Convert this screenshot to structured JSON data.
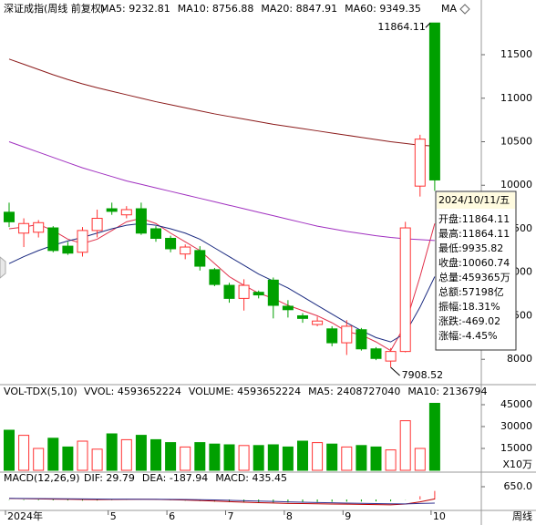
{
  "chart_data": [
    {
      "type": "candlestick",
      "title": "深证成指(周线 前复权)",
      "ma_button": "MA",
      "categories": [
        "2024年",
        null,
        null,
        null,
        null,
        null,
        null,
        "5",
        null,
        null,
        null,
        "6",
        null,
        null,
        null,
        "7",
        null,
        null,
        null,
        "8",
        null,
        null,
        null,
        "9",
        null,
        null,
        null,
        null,
        null,
        "10"
      ],
      "open": [
        9690,
        9450,
        9460,
        9510,
        9300,
        9230,
        9480,
        9730,
        9660,
        9730,
        9500,
        9390,
        9210,
        9250,
        9030,
        8850,
        8700,
        8770,
        8910,
        8610,
        8500,
        8400,
        8350,
        8190,
        8340,
        8120,
        7980,
        8090,
        9990,
        11864.11
      ],
      "high": [
        9800,
        9620,
        9600,
        9530,
        9350,
        9520,
        9720,
        9800,
        9760,
        9800,
        9530,
        9420,
        9320,
        9300,
        9050,
        8880,
        8920,
        8790,
        8940,
        8680,
        8530,
        8490,
        8380,
        8450,
        8360,
        8140,
        8130,
        9580,
        10580,
        11864.11
      ],
      "low": [
        9520,
        9290,
        9400,
        9230,
        9200,
        9180,
        9400,
        9660,
        9620,
        9430,
        9350,
        9230,
        9150,
        9020,
        8840,
        8650,
        8560,
        8700,
        8470,
        8480,
        8420,
        8380,
        8150,
        8050,
        8100,
        7990,
        7908.52,
        8080,
        9870,
        9935.82
      ],
      "close": [
        9580,
        9560,
        9570,
        9250,
        9220,
        9480,
        9620,
        9700,
        9720,
        9450,
        9390,
        9270,
        9290,
        9070,
        8860,
        8700,
        8850,
        8740,
        8620,
        8570,
        8470,
        8440,
        8190,
        8380,
        8120,
        8010,
        8090,
        9510,
        10530,
        10060.74
      ],
      "high_label": "11864.11",
      "low_label": "7908.52",
      "up_color": "#ff3232",
      "down_color": "#00a000",
      "series": [
        {
          "name": "MA5: 9232.81",
          "color": "#e0304a",
          "values": [
            9500,
            9520,
            9550,
            9480,
            9380,
            9330,
            9380,
            9480,
            9580,
            9620,
            9560,
            9450,
            9350,
            9250,
            9100,
            8950,
            8850,
            8760,
            8700,
            8620,
            8560,
            8500,
            8420,
            8320,
            8280,
            8200,
            8100,
            8400,
            8950,
            9560
          ]
        },
        {
          "name": "MA10: 8756.88",
          "color": "#1a2a80",
          "values": [
            9100,
            9180,
            9250,
            9310,
            9360,
            9400,
            9450,
            9500,
            9540,
            9560,
            9540,
            9500,
            9450,
            9380,
            9280,
            9180,
            9080,
            8980,
            8900,
            8820,
            8720,
            8620,
            8520,
            8420,
            8330,
            8250,
            8200,
            8300,
            8600,
            8950
          ]
        },
        {
          "name": "MA20: 8847.91",
          "color": "#a030c0",
          "values": [
            10500,
            10440,
            10380,
            10320,
            10260,
            10200,
            10150,
            10100,
            10050,
            10010,
            9970,
            9930,
            9890,
            9850,
            9810,
            9770,
            9730,
            9690,
            9650,
            9610,
            9570,
            9530,
            9500,
            9470,
            9445,
            9420,
            9400,
            9385,
            9375,
            9365
          ]
        },
        {
          "name": "MA60: 9349.35",
          "color": "#8b1a1a",
          "values": [
            11450,
            11390,
            11330,
            11270,
            11215,
            11165,
            11120,
            11080,
            11040,
            11000,
            10960,
            10925,
            10890,
            10855,
            10820,
            10790,
            10760,
            10730,
            10700,
            10675,
            10650,
            10625,
            10600,
            10575,
            10550,
            10525,
            10500,
            10480,
            10460,
            10450
          ]
        }
      ],
      "ylim": [
        7730,
        11919
      ],
      "yticks": [
        8000,
        8500,
        9000,
        9500,
        10000,
        10500,
        11000,
        11500
      ],
      "tooltip": {
        "title": "2024/10/11/五",
        "rows": [
          "开盘:11864.11",
          "最高:11864.11",
          "最低:9935.82",
          "收盘:10060.74",
          "总量:459365万",
          "总额:57198亿",
          "振幅:18.31%",
          "涨跌:-469.02",
          "涨幅:-4.45%"
        ]
      },
      "period_label": "周线"
    },
    {
      "type": "bar",
      "title": "VOL-TDX(5,10)",
      "legend": [
        "VVOL: 4593652224",
        "VOLUME: 4593652224",
        "MA5: 2408727040",
        "MA10: 2136794"
      ],
      "values": [
        27500,
        24000,
        15000,
        22000,
        16000,
        20000,
        14500,
        25000,
        21000,
        24000,
        21000,
        19000,
        16000,
        19000,
        18000,
        17500,
        17000,
        17000,
        17500,
        16000,
        20000,
        19000,
        18000,
        16000,
        17000,
        16000,
        14000,
        34000,
        15000,
        45937
      ],
      "ylim": [
        0,
        48750
      ],
      "yticks": [
        15000,
        30000,
        45000
      ],
      "unit": "X10万"
    },
    {
      "type": "macd",
      "title": "MACD(12,26,9)",
      "series": [
        {
          "name": "DIF: 29.79",
          "color": "#c00000",
          "values": [
            50,
            40,
            30,
            20,
            10,
            0,
            -5,
            0,
            5,
            10,
            5,
            -10,
            -30,
            -50,
            -80,
            -110,
            -140,
            -160,
            -180,
            -200,
            -210,
            -220,
            -230,
            -240,
            -250,
            -260,
            -270,
            -230,
            -120,
            29.79
          ]
        },
        {
          "name": "DEA: -187.94",
          "color": "#303090",
          "values": [
            60,
            55,
            48,
            42,
            35,
            28,
            22,
            18,
            15,
            13,
            11,
            7,
            0,
            -10,
            -24,
            -41,
            -61,
            -81,
            -101,
            -121,
            -139,
            -155,
            -170,
            -184,
            -197,
            -210,
            -222,
            -224,
            -203,
            -187.94
          ]
        }
      ],
      "histogram": {
        "name": "MACD: 435.45",
        "values": [
          -20,
          -30,
          -36,
          -44,
          -50,
          -56,
          -54,
          -36,
          -20,
          -6,
          -12,
          -34,
          -60,
          -80,
          -112,
          -138,
          -158,
          -158,
          -158,
          -158,
          -142,
          -130,
          -120,
          -112,
          -106,
          -100,
          -96,
          -12,
          166,
          435.45
        ]
      },
      "ylim": [
        -464,
        1300
      ],
      "yticks": [
        {
          "value": 650,
          "label": "650.0"
        }
      ]
    }
  ]
}
